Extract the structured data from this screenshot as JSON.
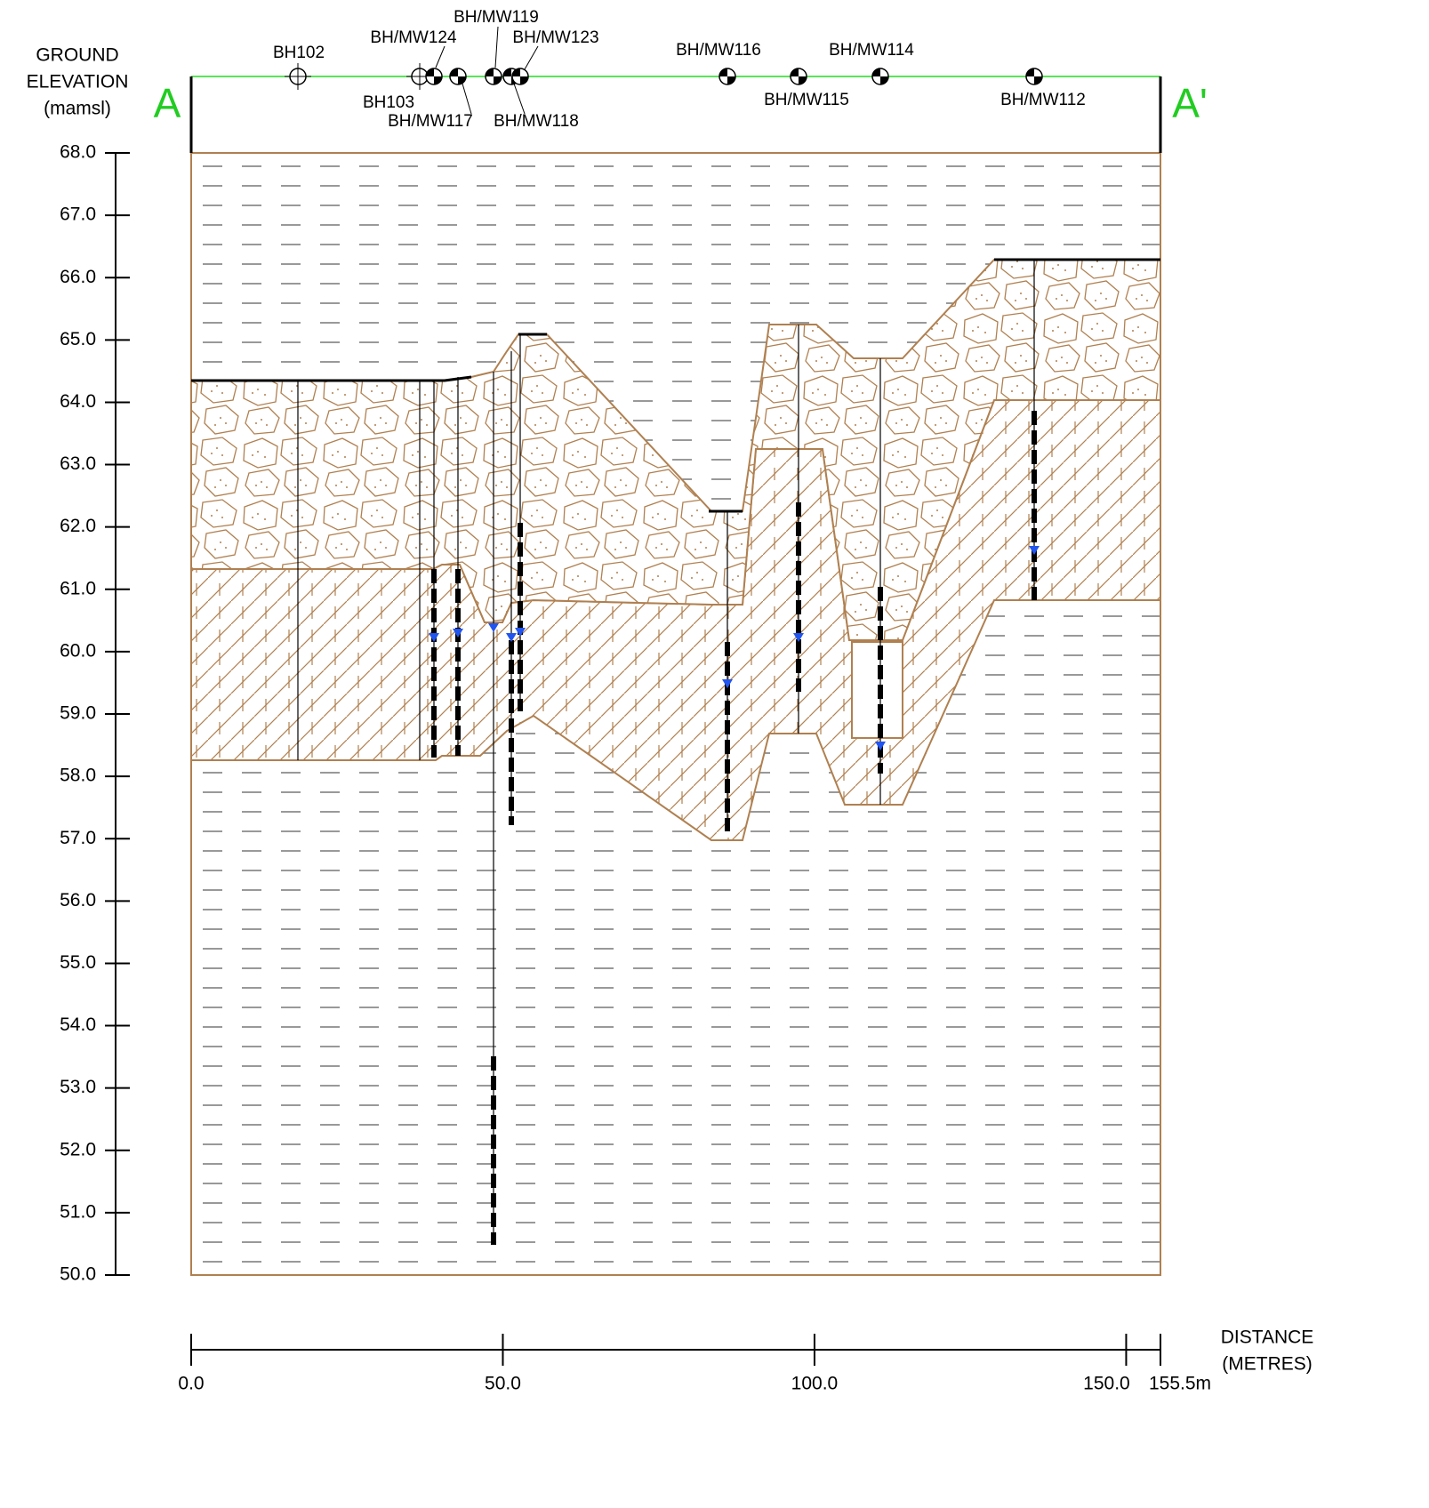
{
  "section": {
    "start": "A",
    "end": "A'"
  },
  "elevation_axis": {
    "title": [
      "GROUND",
      "ELEVATION",
      "(mamsl)"
    ],
    "ticks": [
      {
        "value": 68,
        "label": "68.0"
      },
      {
        "value": 67,
        "label": "67.0"
      },
      {
        "value": 66,
        "label": "66.0"
      },
      {
        "value": 65,
        "label": "65.0"
      },
      {
        "value": 64,
        "label": "64.0"
      },
      {
        "value": 63,
        "label": "63.0"
      },
      {
        "value": 62,
        "label": "62.0"
      },
      {
        "value": 61,
        "label": "61.0"
      },
      {
        "value": 60,
        "label": "60.0"
      },
      {
        "value": 59,
        "label": "59.0"
      },
      {
        "value": 58,
        "label": "58.0"
      },
      {
        "value": 57,
        "label": "57.0"
      },
      {
        "value": 56,
        "label": "56.0"
      },
      {
        "value": 55,
        "label": "55.0"
      },
      {
        "value": 54,
        "label": "54.0"
      },
      {
        "value": 53,
        "label": "53.0"
      },
      {
        "value": 52,
        "label": "52.0"
      },
      {
        "value": 51,
        "label": "51.0"
      },
      {
        "value": 50,
        "label": "50.0"
      }
    ]
  },
  "distance_axis": {
    "title": [
      "DISTANCE",
      "(METRES)"
    ],
    "ticks": [
      {
        "value": 0,
        "label": "0.0"
      },
      {
        "value": 50,
        "label": "50.0"
      },
      {
        "value": 100,
        "label": "100.0"
      },
      {
        "value": 150,
        "label": "150.0"
      },
      {
        "value": 155.5,
        "label": "155.5m"
      }
    ]
  },
  "boreholes": [
    "BH102",
    "BH103",
    "BH/MW124",
    "BH/MW117",
    "BH/MW119",
    "BH/MW118",
    "BH/MW123",
    "BH/MW116",
    "BH/MW115",
    "BH/MW114",
    "BH/MW112"
  ]
}
